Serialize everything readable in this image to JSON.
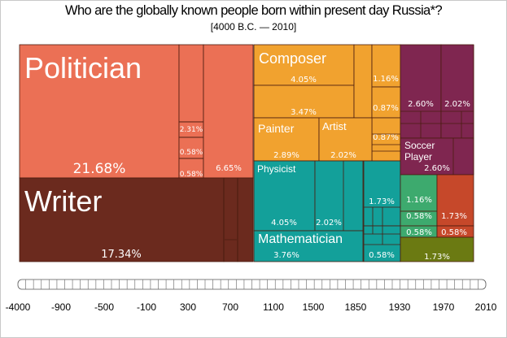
{
  "title": "Who are the globally known people born within present day Russia*?",
  "subtitle": "[4000 B.C. — 2010]",
  "chart_data": {
    "type": "treemap",
    "title": "Who are the globally known people born within present day Russia*?",
    "subtitle": "[4000 B.C. — 2010]",
    "blocks": [
      {
        "id": "politician",
        "label": "Politician",
        "value_label": "21.68%",
        "value": 21.68,
        "color": "#EB7055"
      },
      {
        "id": "pol-sub-a",
        "label": "",
        "value_label": "",
        "value": null,
        "color": "#EB7055"
      },
      {
        "id": "pol-sub-b",
        "label": "",
        "value_label": "2.31%",
        "value": 2.31,
        "color": "#EB7055"
      },
      {
        "id": "pol-sub-c",
        "label": "",
        "value_label": "0.58%",
        "value": 0.58,
        "color": "#EB7055"
      },
      {
        "id": "pol-sub-d",
        "label": "",
        "value_label": "0.58%",
        "value": 0.58,
        "color": "#EB7055"
      },
      {
        "id": "pol-sub-e",
        "label": "",
        "value_label": "6.65%",
        "value": 6.65,
        "color": "#EB7055"
      },
      {
        "id": "writer",
        "label": "Writer",
        "value_label": "17.34%",
        "value": 17.34,
        "color": "#6B2A1E"
      },
      {
        "id": "writer-sub-a",
        "label": "",
        "value_label": "",
        "value": null,
        "color": "#6B2A1E"
      },
      {
        "id": "writer-sub-b",
        "label": "",
        "value_label": "",
        "value": null,
        "color": "#6B2A1E"
      },
      {
        "id": "composer",
        "label": "Composer",
        "value_label": "4.05%",
        "value": 4.05,
        "color": "#F1A22F"
      },
      {
        "id": "comp-sub-a",
        "label": "",
        "value_label": "3.47%",
        "value": 3.47,
        "color": "#F1A22F"
      },
      {
        "id": "comp-sub-b",
        "label": "",
        "value_label": "",
        "value": null,
        "color": "#F1A22F"
      },
      {
        "id": "comp-sub-c",
        "label": "",
        "value_label": "1.16%",
        "value": 1.16,
        "color": "#F1A22F"
      },
      {
        "id": "comp-sub-d",
        "label": "",
        "value_label": "0.87%",
        "value": 0.87,
        "color": "#F1A22F"
      },
      {
        "id": "comp-sub-e",
        "label": "",
        "value_label": "0.87%",
        "value": 0.87,
        "color": "#F1A22F"
      },
      {
        "id": "painter",
        "label": "Painter",
        "value_label": "2.89%",
        "value": 2.89,
        "color": "#F1A22F"
      },
      {
        "id": "artist",
        "label": "Artist",
        "value_label": "2.02%",
        "value": 2.02,
        "color": "#F1A22F"
      },
      {
        "id": "physicist",
        "label": "Physicist",
        "value_label": "4.05%",
        "value": 4.05,
        "color": "#13A09A"
      },
      {
        "id": "phys-sub-a",
        "label": "",
        "value_label": "2.02%",
        "value": 2.02,
        "color": "#13A09A"
      },
      {
        "id": "phys-sub-b",
        "label": "",
        "value_label": "",
        "value": null,
        "color": "#13A09A"
      },
      {
        "id": "phys-sub-c",
        "label": "",
        "value_label": "1.73%",
        "value": 1.73,
        "color": "#13A09A"
      },
      {
        "id": "mathematician",
        "label": "Mathematician",
        "value_label": "3.76%",
        "value": 3.76,
        "color": "#13A09A"
      },
      {
        "id": "math-sub-a",
        "label": "",
        "value_label": "0.58%",
        "value": 0.58,
        "color": "#13A09A"
      },
      {
        "id": "purple-a",
        "label": "",
        "value_label": "2.60%",
        "value": 2.6,
        "color": "#7F2650"
      },
      {
        "id": "purple-b",
        "label": "",
        "value_label": "2.02%",
        "value": 2.02,
        "color": "#7F2650"
      },
      {
        "id": "soccer",
        "label": "Soccer Player",
        "value_label": "2.60%",
        "value": 2.6,
        "color": "#7F2650"
      },
      {
        "id": "green-a",
        "label": "",
        "value_label": "1.16%",
        "value": 1.16,
        "color": "#3DAA6E"
      },
      {
        "id": "green-b",
        "label": "",
        "value_label": "0.58%",
        "value": 0.58,
        "color": "#3DAA6E"
      },
      {
        "id": "green-c",
        "label": "",
        "value_label": "0.58%",
        "value": 0.58,
        "color": "#3DAA6E"
      },
      {
        "id": "red-a",
        "label": "",
        "value_label": "1.73%",
        "value": 1.73,
        "color": "#C6482A"
      },
      {
        "id": "red-b",
        "label": "",
        "value_label": "0.58%",
        "value": 0.58,
        "color": "#C6482A"
      },
      {
        "id": "olive",
        "label": "",
        "value_label": "1.73%",
        "value": 1.73,
        "color": "#6B7A12"
      }
    ],
    "timeline_ticks": [
      "-4000",
      "-900",
      "-500",
      "-100",
      "300",
      "700",
      "1100",
      "1500",
      "1850",
      "1930",
      "1970",
      "2010"
    ]
  }
}
